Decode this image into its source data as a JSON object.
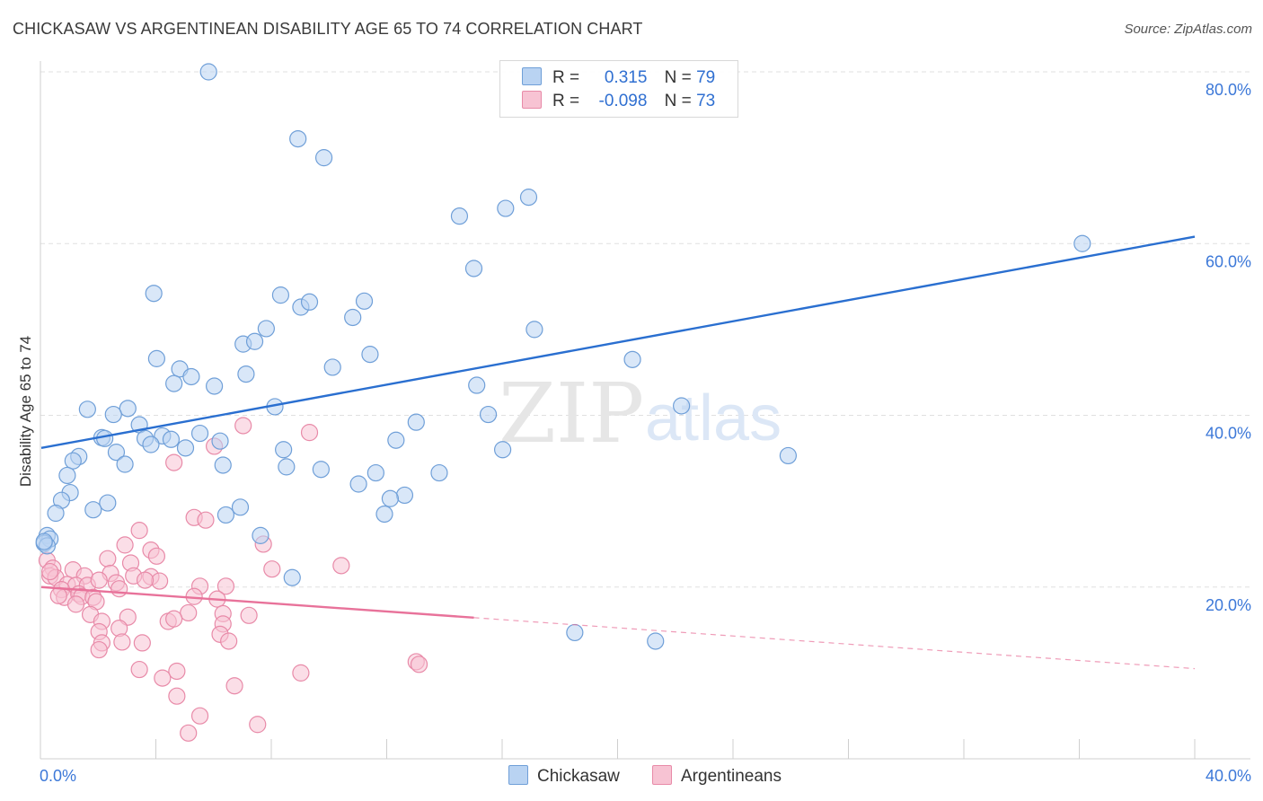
{
  "title": "CHICKASAW VS ARGENTINEAN DISABILITY AGE 65 TO 74 CORRELATION CHART",
  "source": "Source: ZipAtlas.com",
  "watermark": {
    "zip": "ZIP",
    "atlas": "atlas"
  },
  "colors": {
    "chickasaw_fill": "#b9d3f2",
    "chickasaw_stroke": "#6f9fd8",
    "chickasaw_line": "#2a6fd0",
    "argentinean_fill": "#f7c3d3",
    "argentinean_stroke": "#e88aa8",
    "argentinean_line": "#e8729a",
    "axis_text": "#3c78d8",
    "grid": "#e0e0e0"
  },
  "legend": {
    "rows": [
      {
        "r_label": "R =",
        "r_value": "0.315",
        "n_label": "N =",
        "n_value": "79"
      },
      {
        "r_label": "R =",
        "r_value": "-0.098",
        "n_label": "N =",
        "n_value": "73"
      }
    ]
  },
  "bottom_legend": [
    "Chickasaw",
    "Argentineans"
  ],
  "chart_data": {
    "type": "scatter",
    "title": "CHICKASAW VS ARGENTINEAN DISABILITY AGE 65 TO 74 CORRELATION CHART",
    "xlabel": "",
    "ylabel": "Disability Age 65 to 74",
    "xlim": [
      0,
      40
    ],
    "ylim": [
      0,
      82
    ],
    "x_tick_labels": [
      "0.0%",
      "40.0%"
    ],
    "y_ticks": [
      20,
      40,
      60,
      80
    ],
    "y_tick_labels": [
      "20.0%",
      "40.0%",
      "60.0%",
      "80.0%"
    ],
    "grid": true,
    "legend_position": "top-center",
    "series": [
      {
        "name": "Chickasaw",
        "r": 0.315,
        "n": 79,
        "trend": {
          "x0": 0,
          "y0": 36.2,
          "x1": 40,
          "y1": 60.8,
          "dashed_from": null
        },
        "points": [
          [
            5.8,
            80.0
          ],
          [
            8.9,
            72.2
          ],
          [
            9.8,
            70.0
          ],
          [
            14.5,
            63.2
          ],
          [
            16.1,
            64.1
          ],
          [
            16.9,
            65.4
          ],
          [
            36.1,
            60.0
          ],
          [
            15.0,
            57.1
          ],
          [
            3.9,
            54.2
          ],
          [
            8.3,
            54.0
          ],
          [
            9.0,
            52.6
          ],
          [
            9.3,
            53.2
          ],
          [
            10.8,
            51.4
          ],
          [
            11.2,
            53.3
          ],
          [
            7.8,
            50.1
          ],
          [
            17.1,
            50.0
          ],
          [
            7.0,
            48.3
          ],
          [
            7.4,
            48.6
          ],
          [
            11.4,
            47.1
          ],
          [
            4.0,
            46.6
          ],
          [
            4.8,
            45.4
          ],
          [
            10.1,
            45.6
          ],
          [
            20.5,
            46.5
          ],
          [
            5.2,
            44.5
          ],
          [
            7.1,
            44.8
          ],
          [
            4.6,
            43.7
          ],
          [
            6.0,
            43.4
          ],
          [
            15.1,
            43.5
          ],
          [
            1.6,
            40.7
          ],
          [
            3.0,
            40.8
          ],
          [
            2.5,
            40.1
          ],
          [
            8.1,
            41.0
          ],
          [
            15.5,
            40.1
          ],
          [
            22.2,
            41.1
          ],
          [
            3.4,
            38.9
          ],
          [
            13.0,
            39.2
          ],
          [
            2.1,
            37.4
          ],
          [
            2.2,
            37.3
          ],
          [
            3.6,
            37.3
          ],
          [
            4.2,
            37.6
          ],
          [
            4.5,
            37.2
          ],
          [
            5.5,
            37.9
          ],
          [
            3.8,
            36.6
          ],
          [
            5.0,
            36.2
          ],
          [
            6.2,
            37.0
          ],
          [
            8.4,
            36.0
          ],
          [
            12.3,
            37.1
          ],
          [
            16.0,
            36.0
          ],
          [
            2.6,
            35.7
          ],
          [
            1.3,
            35.2
          ],
          [
            1.1,
            34.7
          ],
          [
            2.9,
            34.3
          ],
          [
            6.3,
            34.2
          ],
          [
            8.5,
            34.0
          ],
          [
            9.7,
            33.7
          ],
          [
            25.9,
            35.3
          ],
          [
            11.6,
            33.3
          ],
          [
            13.8,
            33.3
          ],
          [
            0.9,
            33.0
          ],
          [
            11.0,
            32.0
          ],
          [
            1.0,
            31.0
          ],
          [
            12.6,
            30.7
          ],
          [
            12.1,
            30.3
          ],
          [
            0.7,
            30.1
          ],
          [
            2.3,
            29.8
          ],
          [
            6.9,
            29.3
          ],
          [
            1.8,
            29.0
          ],
          [
            0.5,
            28.6
          ],
          [
            6.4,
            28.4
          ],
          [
            11.9,
            28.5
          ],
          [
            0.2,
            26.0
          ],
          [
            0.3,
            25.6
          ],
          [
            7.6,
            26.0
          ],
          [
            0.1,
            25.1
          ],
          [
            0.2,
            24.8
          ],
          [
            8.7,
            21.1
          ],
          [
            18.5,
            14.7
          ],
          [
            21.3,
            13.7
          ],
          [
            0.1,
            25.3
          ]
        ]
      },
      {
        "name": "Argentineans",
        "r": -0.098,
        "n": 73,
        "trend": {
          "x0": 0,
          "y0": 20.0,
          "x1": 40,
          "y1": 10.5,
          "dashed_from": 15.0
        },
        "points": [
          [
            7.0,
            38.8
          ],
          [
            9.3,
            38.0
          ],
          [
            6.0,
            36.4
          ],
          [
            4.6,
            34.5
          ],
          [
            3.4,
            26.6
          ],
          [
            5.3,
            28.1
          ],
          [
            5.7,
            27.8
          ],
          [
            2.9,
            24.9
          ],
          [
            7.7,
            25.0
          ],
          [
            3.8,
            24.3
          ],
          [
            4.0,
            23.6
          ],
          [
            2.3,
            23.3
          ],
          [
            3.1,
            22.8
          ],
          [
            0.2,
            23.1
          ],
          [
            0.4,
            22.2
          ],
          [
            1.1,
            22.0
          ],
          [
            8.0,
            22.1
          ],
          [
            10.4,
            22.5
          ],
          [
            0.3,
            21.3
          ],
          [
            0.5,
            21.1
          ],
          [
            1.5,
            21.3
          ],
          [
            2.4,
            21.6
          ],
          [
            3.2,
            21.3
          ],
          [
            3.8,
            21.2
          ],
          [
            4.1,
            20.7
          ],
          [
            0.9,
            20.3
          ],
          [
            1.2,
            20.2
          ],
          [
            1.6,
            20.2
          ],
          [
            2.6,
            20.5
          ],
          [
            2.0,
            20.8
          ],
          [
            3.6,
            20.8
          ],
          [
            5.5,
            20.1
          ],
          [
            6.4,
            20.1
          ],
          [
            0.7,
            19.7
          ],
          [
            0.8,
            18.8
          ],
          [
            1.3,
            19.2
          ],
          [
            1.4,
            18.9
          ],
          [
            1.8,
            18.8
          ],
          [
            2.7,
            19.8
          ],
          [
            5.3,
            18.9
          ],
          [
            6.1,
            18.6
          ],
          [
            1.2,
            18.0
          ],
          [
            1.9,
            18.3
          ],
          [
            0.6,
            19.0
          ],
          [
            1.7,
            16.8
          ],
          [
            3.0,
            16.5
          ],
          [
            5.1,
            17.0
          ],
          [
            6.3,
            16.9
          ],
          [
            7.2,
            16.7
          ],
          [
            2.1,
            16.0
          ],
          [
            4.4,
            16.0
          ],
          [
            4.6,
            16.3
          ],
          [
            6.3,
            15.7
          ],
          [
            2.7,
            15.2
          ],
          [
            6.2,
            14.5
          ],
          [
            2.0,
            14.8
          ],
          [
            2.8,
            13.6
          ],
          [
            2.1,
            13.5
          ],
          [
            3.5,
            13.5
          ],
          [
            6.5,
            13.7
          ],
          [
            2.0,
            12.7
          ],
          [
            13.0,
            11.3
          ],
          [
            13.1,
            11.0
          ],
          [
            3.4,
            10.4
          ],
          [
            4.7,
            10.2
          ],
          [
            9.0,
            10.0
          ],
          [
            4.2,
            9.4
          ],
          [
            6.7,
            8.5
          ],
          [
            4.7,
            7.3
          ],
          [
            5.5,
            5.0
          ],
          [
            7.5,
            4.0
          ],
          [
            5.1,
            3.0
          ],
          [
            0.3,
            21.8
          ]
        ]
      }
    ]
  }
}
